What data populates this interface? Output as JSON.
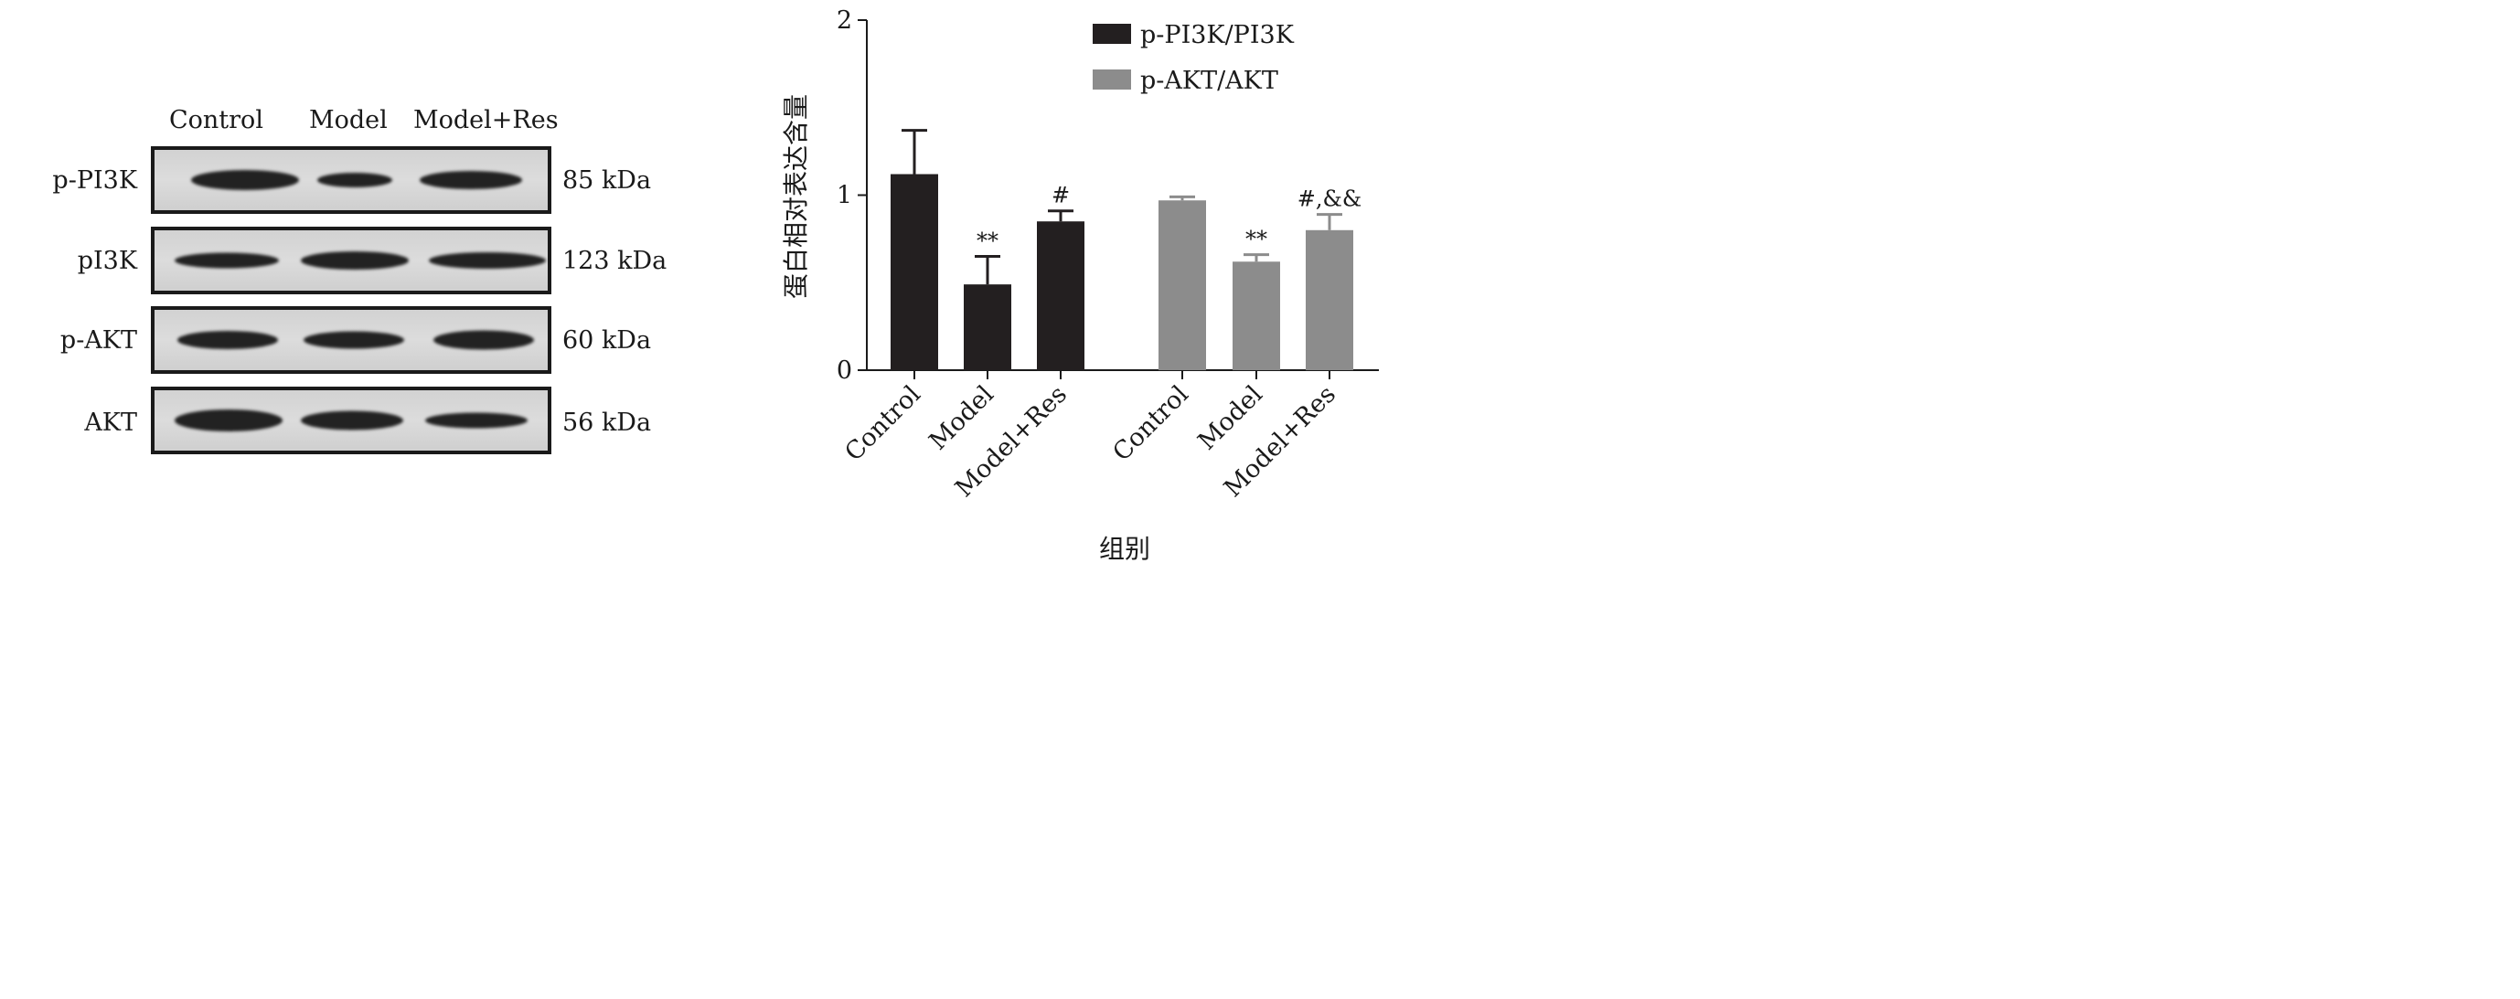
{
  "blot": {
    "lanes": [
      "Control",
      "Model",
      "Model+Res"
    ],
    "rows": [
      {
        "name": "p-PI3K",
        "kda": "85 kDa",
        "bands": [
          0.95,
          0.65,
          0.85
        ]
      },
      {
        "name": "pI3K",
        "kda": "123 kDa",
        "bands": [
          0.85,
          0.9,
          0.8
        ]
      },
      {
        "name": "p-AKT",
        "kda": "60 kDa",
        "bands": [
          0.9,
          0.85,
          0.9
        ]
      },
      {
        "name": "AKT",
        "kda": "56 kDa",
        "bands": [
          0.95,
          0.85,
          0.75
        ]
      }
    ]
  },
  "chart_data": {
    "type": "bar",
    "title": "",
    "xlabel": "组别",
    "ylabel": "蛋白相对表达含量",
    "ylim": [
      0,
      2
    ],
    "yticks": [
      0,
      1,
      2
    ],
    "legend_position": "top-right",
    "grid": false,
    "groups": [
      {
        "name": "p-PI3K/PI3K",
        "color": "#231f20",
        "categories": [
          "Control",
          "Model",
          "Model+Res"
        ],
        "values": [
          1.12,
          0.49,
          0.85
        ],
        "errors": [
          0.25,
          0.16,
          0.06
        ],
        "annotations": [
          "",
          "**",
          "#"
        ]
      },
      {
        "name": "p-AKT/AKT",
        "color": "#8c8c8c",
        "categories": [
          "Control",
          "Model",
          "Model+Res"
        ],
        "values": [
          0.97,
          0.62,
          0.8
        ],
        "errors": [
          0.02,
          0.04,
          0.09
        ],
        "annotations": [
          "",
          "**",
          "#,&&"
        ]
      }
    ]
  }
}
